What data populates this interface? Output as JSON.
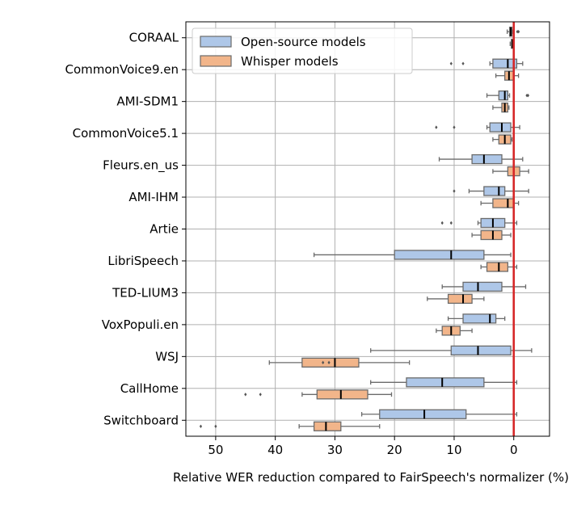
{
  "chart_data": {
    "type": "boxplot",
    "orientation": "horizontal",
    "xlabel": "Relative WER reduction compared to FairSpeech's normalizer (%)",
    "xlim": [
      55,
      -6
    ],
    "x_ticks": [
      50,
      40,
      30,
      20,
      10,
      0
    ],
    "x_inverted": true,
    "grid": true,
    "legend_position": "top-left",
    "reference_line": {
      "x": 0,
      "color": "#d62728"
    },
    "categories": [
      "CORAAL",
      "CommonVoice9.en",
      "AMI-SDM1",
      "CommonVoice5.1",
      "Fleurs.en_us",
      "AMI-IHM",
      "Artie",
      "LibriSpeech",
      "TED-LIUM3",
      "VoxPopuli.en",
      "WSJ",
      "CallHome",
      "Switchboard"
    ],
    "series": [
      {
        "name": "Open-source models",
        "color": "#aec7e8",
        "boxes": [
          {
            "whislo": 0.2,
            "q1": 0.3,
            "med": 0.5,
            "q3": 0.7,
            "whishi": 1.1,
            "fliers": [
              -0.8,
              -0.6
            ]
          },
          {
            "whislo": -1.5,
            "q1": -0.5,
            "med": 1.0,
            "q3": 3.5,
            "whishi": 4.0,
            "fliers": [
              10.5,
              8.5
            ]
          },
          {
            "whislo": 0.7,
            "q1": 1.0,
            "med": 1.5,
            "q3": 2.5,
            "whishi": 4.5,
            "fliers": [
              -2.2,
              -2.4
            ]
          },
          {
            "whislo": -1.0,
            "q1": 0.5,
            "med": 2.0,
            "q3": 4.0,
            "whishi": 4.5,
            "fliers": [
              13.0,
              10.0
            ]
          },
          {
            "whislo": -1.5,
            "q1": 2.0,
            "med": 5.0,
            "q3": 7.0,
            "whishi": 12.5,
            "fliers": []
          },
          {
            "whislo": -2.5,
            "q1": 1.5,
            "med": 2.5,
            "q3": 5.0,
            "whishi": 7.5,
            "fliers": [
              10.0
            ]
          },
          {
            "whislo": -0.5,
            "q1": 1.5,
            "med": 3.5,
            "q3": 5.5,
            "whishi": 6.0,
            "fliers": [
              12.0,
              10.5
            ]
          },
          {
            "whislo": 0.5,
            "q1": 5.0,
            "med": 10.5,
            "q3": 20.0,
            "whishi": 33.5,
            "fliers": []
          },
          {
            "whislo": -2.0,
            "q1": 2.0,
            "med": 6.0,
            "q3": 8.5,
            "whishi": 12.0,
            "fliers": []
          },
          {
            "whislo": 1.5,
            "q1": 3.0,
            "med": 4.0,
            "q3": 8.5,
            "whishi": 11.0,
            "fliers": []
          },
          {
            "whislo": -3.0,
            "q1": 0.5,
            "med": 6.0,
            "q3": 10.5,
            "whishi": 24.0,
            "fliers": []
          },
          {
            "whislo": -0.5,
            "q1": 5.0,
            "med": 12.0,
            "q3": 18.0,
            "whishi": 24.0,
            "fliers": []
          },
          {
            "whislo": -0.5,
            "q1": 8.0,
            "med": 15.0,
            "q3": 22.5,
            "whishi": 25.5,
            "fliers": []
          }
        ]
      },
      {
        "name": "Whisper models",
        "color": "#f2b58a",
        "boxes": [
          {
            "whislo": 0.0,
            "q1": 0.1,
            "med": 0.2,
            "q3": 0.4,
            "whishi": 0.6,
            "fliers": []
          },
          {
            "whislo": -0.8,
            "q1": 0.0,
            "med": 0.8,
            "q3": 1.5,
            "whishi": 3.0,
            "fliers": []
          },
          {
            "whislo": 0.8,
            "q1": 1.0,
            "med": 1.5,
            "q3": 2.0,
            "whishi": 3.5,
            "fliers": []
          },
          {
            "whislo": 0.3,
            "q1": 0.5,
            "med": 1.5,
            "q3": 2.5,
            "whishi": 3.5,
            "fliers": []
          },
          {
            "whislo": -2.5,
            "q1": -1.0,
            "med": 0.0,
            "q3": 1.0,
            "whishi": 3.5,
            "fliers": []
          },
          {
            "whislo": -0.8,
            "q1": 0.0,
            "med": 1.0,
            "q3": 3.5,
            "whishi": 5.5,
            "fliers": []
          },
          {
            "whislo": 0.5,
            "q1": 2.0,
            "med": 3.5,
            "q3": 5.5,
            "whishi": 7.0,
            "fliers": []
          },
          {
            "whislo": -0.5,
            "q1": 1.0,
            "med": 2.5,
            "q3": 4.5,
            "whishi": 5.5,
            "fliers": []
          },
          {
            "whislo": 5.0,
            "q1": 7.0,
            "med": 8.5,
            "q3": 11.0,
            "whishi": 14.5,
            "fliers": []
          },
          {
            "whislo": 7.0,
            "q1": 9.0,
            "med": 10.5,
            "q3": 12.0,
            "whishi": 13.0,
            "fliers": []
          },
          {
            "whislo": 17.5,
            "q1": 26.0,
            "med": 30.0,
            "q3": 35.5,
            "whishi": 41.0,
            "fliers": [
              32.0,
              31.0
            ]
          },
          {
            "whislo": 20.5,
            "q1": 24.5,
            "med": 29.0,
            "q3": 33.0,
            "whishi": 35.5,
            "fliers": [
              45.0,
              42.5
            ]
          },
          {
            "whislo": 22.5,
            "q1": 29.0,
            "med": 31.5,
            "q3": 33.5,
            "whishi": 36.0,
            "fliers": [
              52.5,
              50.0
            ]
          }
        ]
      }
    ]
  }
}
